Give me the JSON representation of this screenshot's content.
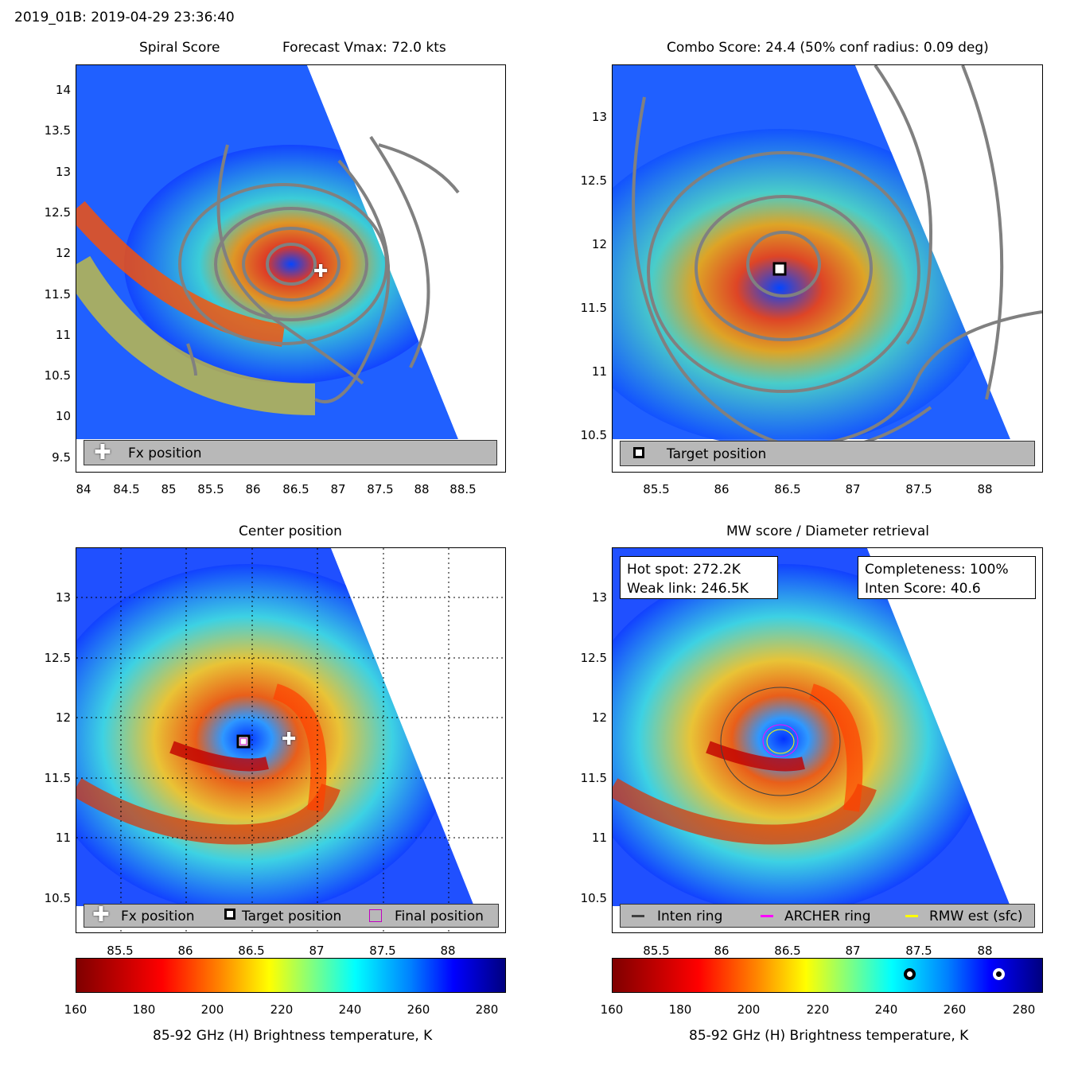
{
  "header": {
    "storm_time": "2019_01B: 2019-04-29 23:36:40"
  },
  "panels": {
    "spiral": {
      "title_left": "Spiral Score",
      "title_right": "Forecast Vmax: 72.0 kts",
      "yticks": [
        "14",
        "13.5",
        "13",
        "12.5",
        "12",
        "11.5",
        "11",
        "10.5",
        "10",
        "9.5"
      ],
      "xticks": [
        "84",
        "84.5",
        "85",
        "85.5",
        "86",
        "86.5",
        "87",
        "87.5",
        "88",
        "88.5"
      ],
      "legend": {
        "fx": "Fx position"
      }
    },
    "combo": {
      "title": "Combo Score: 24.4  (50% conf radius: 0.09 deg)",
      "yticks": [
        "13",
        "12.5",
        "12",
        "11.5",
        "11",
        "10.5"
      ],
      "xticks": [
        "85.5",
        "86",
        "86.5",
        "87",
        "87.5",
        "88"
      ],
      "legend": {
        "target": "Target position"
      }
    },
    "center": {
      "title": "Center position",
      "yticks": [
        "13",
        "12.5",
        "12",
        "11.5",
        "11",
        "10.5"
      ],
      "xticks": [
        "85.5",
        "86",
        "86.5",
        "87",
        "87.5",
        "88"
      ],
      "legend": {
        "fx": "Fx position",
        "target": "Target position",
        "final": "Final position"
      }
    },
    "mw": {
      "title": "MW score / Diameter retrieval",
      "yticks": [
        "13",
        "12.5",
        "12",
        "11.5",
        "11",
        "10.5"
      ],
      "xticks": [
        "85.5",
        "86",
        "86.5",
        "87",
        "87.5",
        "88"
      ],
      "hot_spot": "Hot spot: 272.2K",
      "weak_link": "Weak link: 246.5K",
      "completeness": "Completeness: 100%",
      "inten_score": "Inten Score: 40.6",
      "legend": {
        "inten": "Inten ring",
        "archer": "ARCHER ring",
        "rmw": "RMW est (sfc)"
      }
    }
  },
  "colorbar": {
    "ticks": [
      "160",
      "180",
      "200",
      "220",
      "240",
      "260",
      "280"
    ],
    "label": "85-92 GHz (H) Brightness temperature, K"
  },
  "colors": {
    "inten_ring": "#404040",
    "archer_ring": "#ff00ff",
    "rmw_ring": "#ffff00",
    "contour": "#808080"
  }
}
